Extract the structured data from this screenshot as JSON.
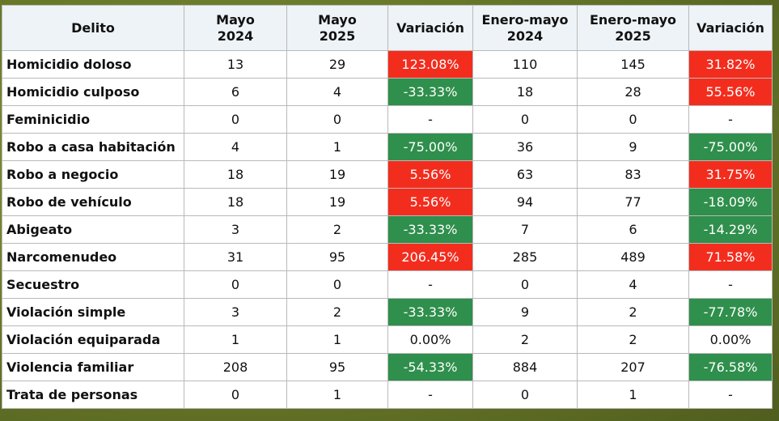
{
  "headers": [
    "Delito",
    "Mayo\n2024",
    "Mayo\n2025",
    "Variación",
    "Enero-mayo\n2024",
    "Enero-mayo\n2025",
    "Variación"
  ],
  "header_lines": [
    [
      "Delito"
    ],
    [
      "Mayo",
      "2024"
    ],
    [
      "Mayo",
      "2025"
    ],
    [
      "Variación"
    ],
    [
      "Enero-mayo",
      "2024"
    ],
    [
      "Enero-mayo",
      "2025"
    ],
    [
      "Variación"
    ]
  ],
  "rows": [
    {
      "delito": "Homicidio doloso",
      "m24": "13",
      "m25": "29",
      "var1": "123.08%",
      "var1_dir": "up",
      "em24": "110",
      "em25": "145",
      "var2": "31.82%",
      "var2_dir": "up"
    },
    {
      "delito": "Homicidio culposo",
      "m24": "6",
      "m25": "4",
      "var1": "-33.33%",
      "var1_dir": "down",
      "em24": "18",
      "em25": "28",
      "var2": "55.56%",
      "var2_dir": "up"
    },
    {
      "delito": "Feminicidio",
      "m24": "0",
      "m25": "0",
      "var1": "-",
      "var1_dir": "none",
      "em24": "0",
      "em25": "0",
      "var2": "-",
      "var2_dir": "none"
    },
    {
      "delito": "Robo a casa habitación",
      "m24": "4",
      "m25": "1",
      "var1": "-75.00%",
      "var1_dir": "down",
      "em24": "36",
      "em25": "9",
      "var2": "-75.00%",
      "var2_dir": "down"
    },
    {
      "delito": "Robo a negocio",
      "m24": "18",
      "m25": "19",
      "var1": "5.56%",
      "var1_dir": "up",
      "em24": "63",
      "em25": "83",
      "var2": "31.75%",
      "var2_dir": "up"
    },
    {
      "delito": "Robo de vehículo",
      "m24": "18",
      "m25": "19",
      "var1": "5.56%",
      "var1_dir": "up",
      "em24": "94",
      "em25": "77",
      "var2": "-18.09%",
      "var2_dir": "down"
    },
    {
      "delito": "Abigeato",
      "m24": "3",
      "m25": "2",
      "var1": "-33.33%",
      "var1_dir": "down",
      "em24": "7",
      "em25": "6",
      "var2": "-14.29%",
      "var2_dir": "down"
    },
    {
      "delito": "Narcomenudeo",
      "m24": "31",
      "m25": "95",
      "var1": "206.45%",
      "var1_dir": "up",
      "em24": "285",
      "em25": "489",
      "var2": "71.58%",
      "var2_dir": "up"
    },
    {
      "delito": "Secuestro",
      "m24": "0",
      "m25": "0",
      "var1": "-",
      "var1_dir": "none",
      "em24": "0",
      "em25": "4",
      "var2": "-",
      "var2_dir": "none"
    },
    {
      "delito": "Violación simple",
      "m24": "3",
      "m25": "2",
      "var1": "-33.33%",
      "var1_dir": "down",
      "em24": "9",
      "em25": "2",
      "var2": "-77.78%",
      "var2_dir": "down"
    },
    {
      "delito": "Violación equiparada",
      "m24": "1",
      "m25": "1",
      "var1": "0.00%",
      "var1_dir": "none",
      "em24": "2",
      "em25": "2",
      "var2": "0.00%",
      "var2_dir": "none"
    },
    {
      "delito": "Violencia familiar",
      "m24": "208",
      "m25": "95",
      "var1": "-54.33%",
      "var1_dir": "down",
      "em24": "884",
      "em25": "207",
      "var2": "-76.58%",
      "var2_dir": "down"
    },
    {
      "delito": "Trata de personas",
      "m24": "0",
      "m25": "1",
      "var1": "-",
      "var1_dir": "none",
      "em24": "0",
      "em25": "1",
      "var2": "-",
      "var2_dir": "none"
    }
  ],
  "colors": {
    "increase": "#f32d1e",
    "decrease": "#2f8f4c",
    "header_bg": "#eef3f7",
    "background": "#6d7d2a"
  }
}
